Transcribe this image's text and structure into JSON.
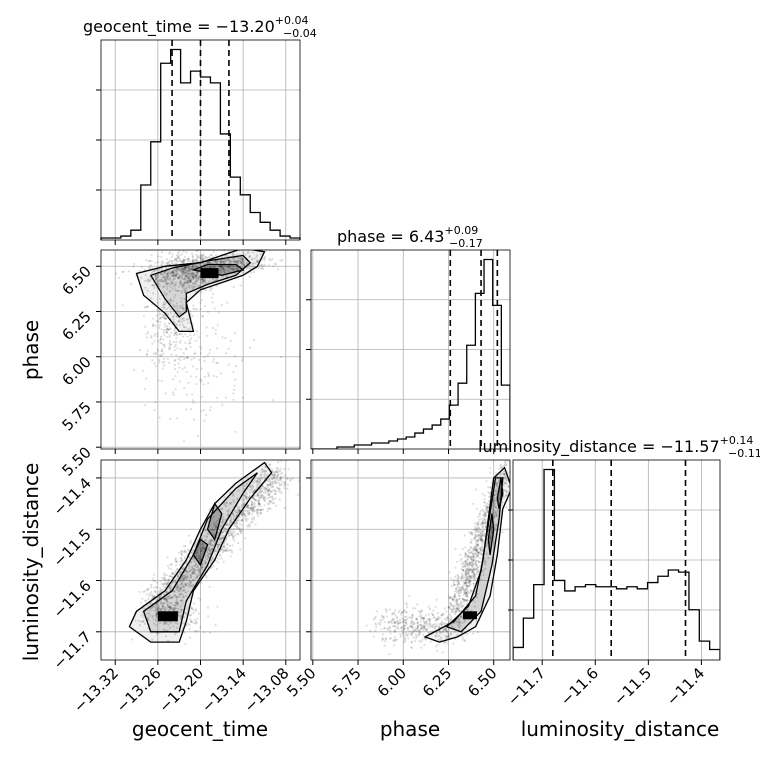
{
  "chart_data": {
    "type": "corner",
    "parameters": [
      "geocent_time",
      "phase",
      "luminosity_distance"
    ],
    "titles": [
      {
        "param": "geocent_time",
        "prefix": "geocent_time = ",
        "median": "−13.20",
        "plus": "+0.04",
        "minus": "−0.04"
      },
      {
        "param": "phase",
        "prefix": "phase = ",
        "median": "6.43",
        "plus": "+0.09",
        "minus": "−0.17"
      },
      {
        "param": "luminosity_distance",
        "prefix": "luminosity_distance = ",
        "median": "−11.57",
        "plus": "+0.14",
        "minus": "−0.11"
      }
    ],
    "axes": {
      "geocent_time": {
        "range": [
          -13.34,
          -13.06
        ],
        "ticks": [
          -13.32,
          -13.26,
          -13.2,
          -13.14,
          -13.08
        ],
        "tick_labels": [
          "−13.32",
          "−13.26",
          "−13.20",
          "−13.14",
          "−13.08"
        ]
      },
      "phase": {
        "range": [
          5.49,
          6.59
        ],
        "ticks": [
          5.5,
          5.75,
          6.0,
          6.25,
          6.5
        ],
        "tick_labels": [
          "5.50",
          "5.75",
          "6.00",
          "6.25",
          "6.50"
        ]
      },
      "luminosity_distance": {
        "range": [
          -11.755,
          -11.365
        ],
        "ticks": [
          -11.7,
          -11.6,
          -11.5,
          -11.4
        ],
        "tick_labels": [
          "−11.7",
          "−11.6",
          "−11.5",
          "−11.4"
        ]
      }
    },
    "axis_labels": {
      "x": [
        "geocent_time",
        "phase",
        "luminosity_distance"
      ],
      "y": [
        "phase",
        "luminosity_distance"
      ]
    },
    "quantiles": {
      "geocent_time": [
        -13.24,
        -13.2,
        -13.16
      ],
      "phase": [
        6.26,
        6.43,
        6.52
      ],
      "luminosity_distance": [
        -11.68,
        -11.57,
        -11.43
      ]
    },
    "histograms": {
      "geocent_time": [
        1,
        1,
        2,
        5,
        28,
        50,
        90,
        97,
        80,
        86,
        83,
        80,
        54,
        32,
        23,
        14,
        9,
        5,
        2,
        1
      ],
      "phase": [
        0,
        0,
        0,
        1,
        1,
        2,
        2,
        3,
        3,
        4,
        5,
        6,
        8,
        10,
        12,
        15,
        22,
        33,
        52,
        78,
        95,
        72,
        32
      ],
      "luminosity_distance": [
        6,
        20,
        36,
        91,
        38,
        33,
        35,
        36,
        35,
        35,
        34,
        35,
        34,
        37,
        40,
        43,
        42,
        24,
        9,
        5
      ]
    },
    "grid": true,
    "legend": "none"
  }
}
